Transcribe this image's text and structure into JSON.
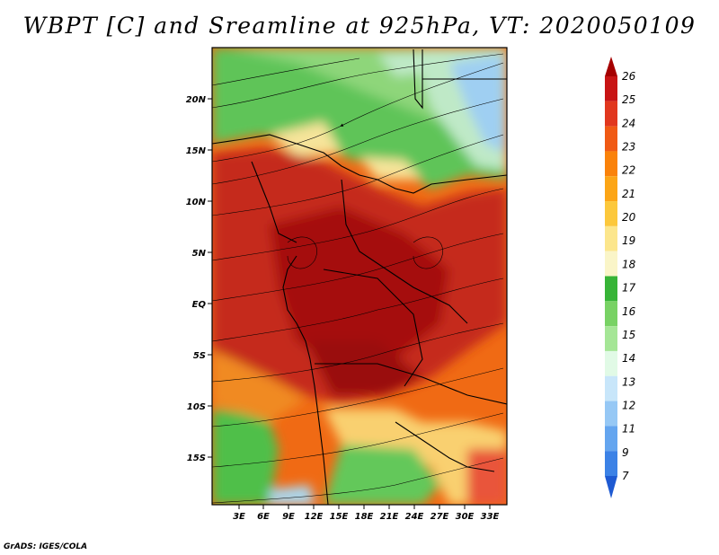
{
  "title": "WBPT [C] and Sreamline at 925hPa, VT: 2020050109",
  "footer": "GrADS: IGES/COLA",
  "map": {
    "lat_labels": [
      "20N",
      "15N",
      "10N",
      "5N",
      "EQ",
      "5S",
      "10S",
      "15S"
    ],
    "lon_labels": [
      "3E",
      "6E",
      "9E",
      "12E",
      "15E",
      "18E",
      "21E",
      "24E",
      "27E",
      "30E",
      "33E"
    ]
  },
  "colorbar": {
    "levels": [
      "26",
      "25",
      "24",
      "23",
      "22",
      "21",
      "20",
      "19",
      "18",
      "17",
      "16",
      "15",
      "14",
      "13",
      "12",
      "11",
      "9",
      "7"
    ],
    "colors": [
      "#a50000",
      "#c81414",
      "#e1371e",
      "#f05a14",
      "#fa820a",
      "#fca516",
      "#fcc83c",
      "#fce68c",
      "#faf5c8",
      "#37b437",
      "#78d264",
      "#a5e696",
      "#e1fae6",
      "#c8e6fa",
      "#96c8f5",
      "#64a5ef",
      "#3c82e6",
      "#1e5ad2"
    ]
  }
}
